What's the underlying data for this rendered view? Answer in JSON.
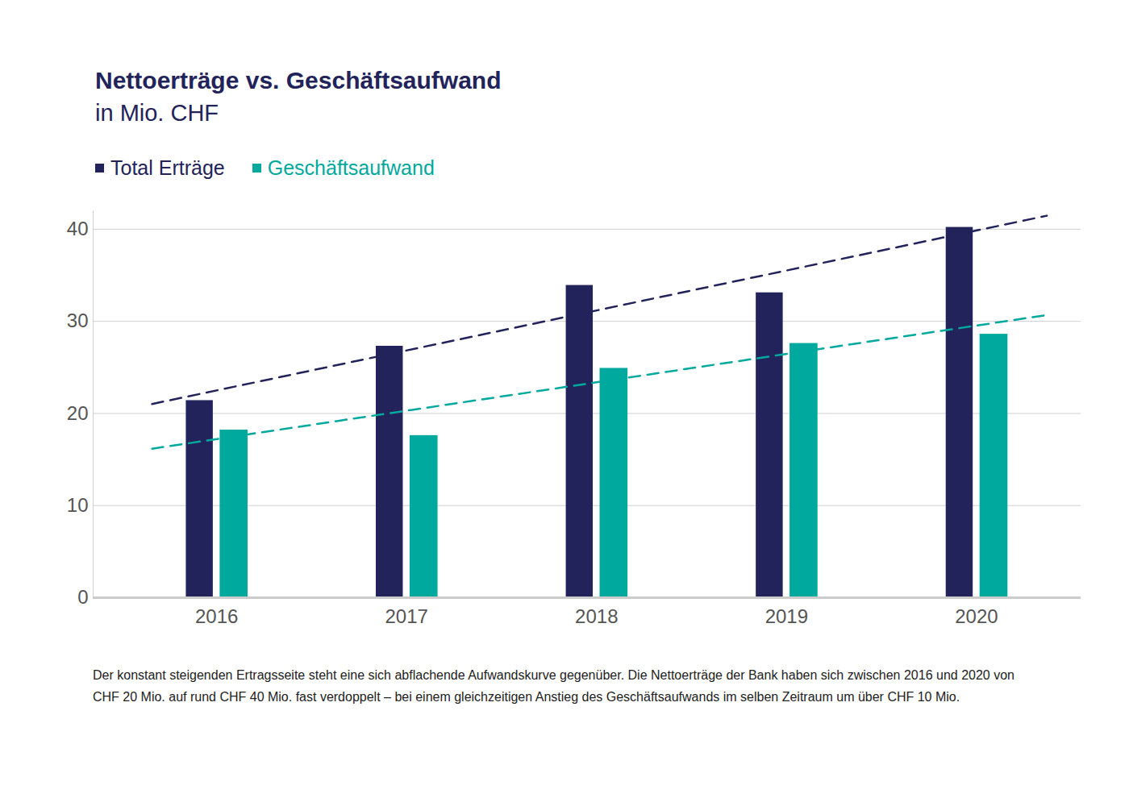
{
  "chart_data": {
    "type": "bar",
    "title": "Nettoerträge vs. Geschäftsaufwand",
    "subtitle": "in Mio. CHF",
    "categories": [
      "2016",
      "2017",
      "2018",
      "2019",
      "2020"
    ],
    "series": [
      {
        "name": "Total Erträge",
        "color": "#23235b",
        "values": [
          21.4,
          27.3,
          33.9,
          33.1,
          40.2
        ]
      },
      {
        "name": "Geschäftsaufwand",
        "color": "#00a99d",
        "values": [
          18.2,
          17.6,
          24.9,
          27.6,
          28.6
        ]
      }
    ],
    "ylim": [
      0,
      42
    ],
    "yticks": [
      0,
      10,
      20,
      30,
      40
    ],
    "grid": true,
    "legend": "top-left",
    "caption": "Der konstant steigenden Ertragsseite steht eine sich abflachende Aufwandskurve gegenüber. Die Nettoerträge der Bank haben sich zwischen 2016 und 2020 von CHF 20 Mio. auf rund CHF 40 Mio. fast verdoppelt – bei einem gleichzeitigen Anstieg des Geschäftsaufwands im selben Zeitraum um über CHF 10 Mio."
  }
}
